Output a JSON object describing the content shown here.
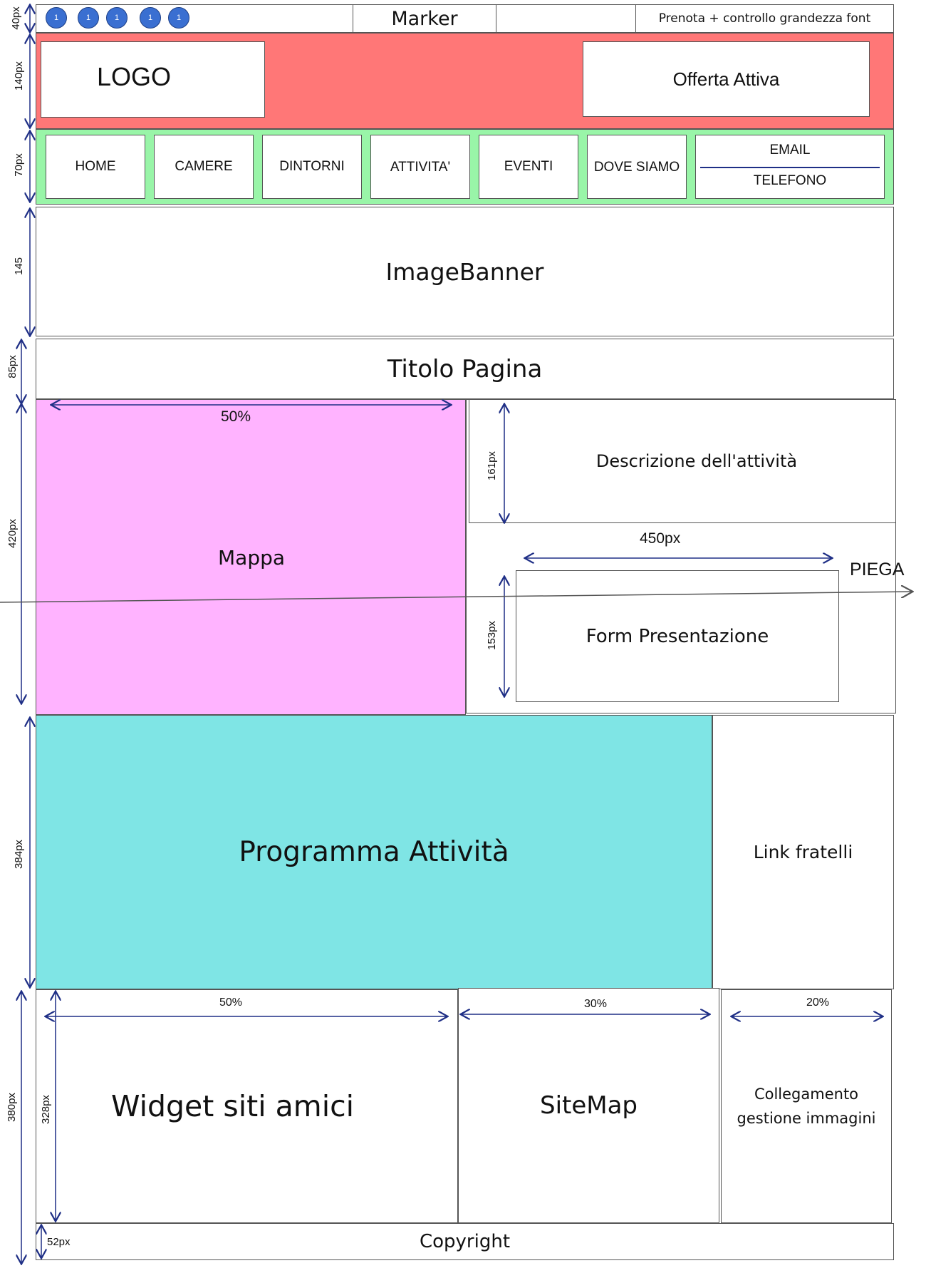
{
  "topbar": {
    "marker_label": "Marker",
    "dots": [
      "1",
      "1",
      "1",
      "1",
      "1"
    ],
    "prenota_label": "Prenota + controllo grandezza font",
    "height_label": "40px"
  },
  "header": {
    "logo_label": "LOGO",
    "offer_label": "Offerta Attiva",
    "height_label": "140px",
    "bg_color": "#ff7777"
  },
  "nav": {
    "items": [
      "HOME",
      "CAMERE",
      "DINTORNI",
      "ATTIVITA'",
      "EVENTI",
      "DOVE SIAMO"
    ],
    "contact_email": "EMAIL",
    "contact_phone": "TELEFONO",
    "height_label": "70px",
    "bg_color": "#99f5a8"
  },
  "banner": {
    "label": "ImageBanner",
    "height_label": "145"
  },
  "title": {
    "label": "Titolo Pagina",
    "height_label": "85px"
  },
  "middle": {
    "map_label": "Mappa",
    "map_width_label": "50%",
    "map_color": "#ffb3ff",
    "desc_label": "Descrizione dell'attività",
    "desc_height_label": "161px",
    "form_label": "Form Presentazione",
    "form_width_label": "450px",
    "form_height_label": "153px",
    "fold_label": "PIEGA",
    "height_label": "420px"
  },
  "program": {
    "label": "Programma Attività",
    "link_label": "Link fratelli",
    "height_label": "384px",
    "color": "#7fe5e5"
  },
  "footer": {
    "widget_label": "Widget siti amici",
    "widget_width_label": "50%",
    "sitemap_label": "SiteMap",
    "sitemap_width_label": "30%",
    "images_label_line1": "Collegamento",
    "images_label_line2": "gestione immagini",
    "images_width_label": "20%",
    "inner_height_label": "328px",
    "height_label": "380px",
    "copyright_label": "Copyright",
    "copyright_height_label": "52px"
  }
}
